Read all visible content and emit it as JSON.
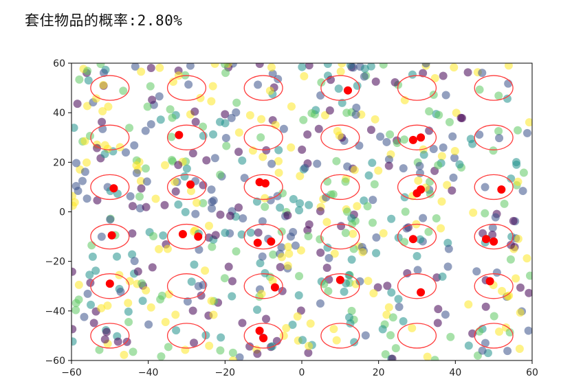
{
  "header": {
    "label": "套住物品的概率:",
    "value": "2.80%"
  },
  "chart_data": {
    "type": "scatter",
    "title": "",
    "xlabel": "",
    "ylabel": "",
    "xlim": [
      -60,
      60
    ],
    "ylim": [
      -60,
      60
    ],
    "xticks": [
      -60,
      -40,
      -20,
      0,
      20,
      40,
      60
    ],
    "yticks": [
      -60,
      -40,
      -20,
      0,
      20,
      40,
      60
    ],
    "grid": false,
    "colors": {
      "rings": "#ff3b3b",
      "hits": "#ff0000",
      "palette": [
        "#440154",
        "#3b528b",
        "#21918c",
        "#5ec962",
        "#fde725"
      ]
    },
    "rings": {
      "centers_x": [
        -50,
        -30,
        -10,
        10,
        30,
        50
      ],
      "centers_y": [
        50,
        30,
        10,
        -10,
        -30,
        -50
      ],
      "semi_axis_x": 5,
      "semi_axis_y": 5
    },
    "hits": [
      {
        "x": 12,
        "y": 49
      },
      {
        "x": -32,
        "y": 31
      },
      {
        "x": 29,
        "y": 29
      },
      {
        "x": 31,
        "y": 30
      },
      {
        "x": -49,
        "y": 9.5
      },
      {
        "x": -29,
        "y": 11
      },
      {
        "x": -11,
        "y": 12
      },
      {
        "x": -9.5,
        "y": 11.5
      },
      {
        "x": 30,
        "y": 7.5
      },
      {
        "x": 31,
        "y": 9
      },
      {
        "x": 52,
        "y": 9
      },
      {
        "x": -49.5,
        "y": -9.5
      },
      {
        "x": -31,
        "y": -9
      },
      {
        "x": -27,
        "y": -10
      },
      {
        "x": -11.5,
        "y": -12.5
      },
      {
        "x": -8,
        "y": -12
      },
      {
        "x": 29,
        "y": -11
      },
      {
        "x": 48,
        "y": -11
      },
      {
        "x": 50,
        "y": -12
      },
      {
        "x": -50,
        "y": -29
      },
      {
        "x": -7,
        "y": -30.5
      },
      {
        "x": 10,
        "y": -27.5
      },
      {
        "x": 31,
        "y": -32.5
      },
      {
        "x": 49,
        "y": -28
      },
      {
        "x": -11,
        "y": -48
      },
      {
        "x": -10,
        "y": -51
      }
    ],
    "scatter": {
      "count": 640,
      "distribution": "uniform random over axis range",
      "alpha": 0.55
    }
  }
}
